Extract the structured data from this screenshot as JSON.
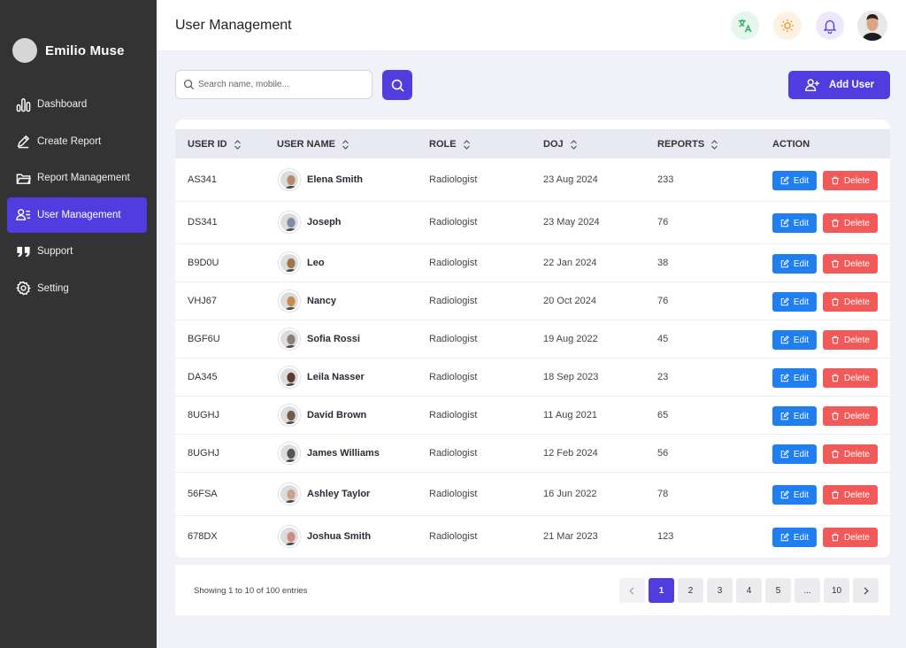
{
  "sidebar": {
    "user_name": "Emilio Muse",
    "items": [
      {
        "label": "Dashboard",
        "icon": "bar-chart-icon",
        "active": false
      },
      {
        "label": "Create Report",
        "icon": "pen-icon",
        "active": false
      },
      {
        "label": "Report Management",
        "icon": "folder-icon",
        "active": false
      },
      {
        "label": "User Management",
        "icon": "user-list-icon",
        "active": true
      },
      {
        "label": "Support",
        "icon": "quote-icon",
        "active": false
      },
      {
        "label": "Setting",
        "icon": "gear-icon",
        "active": false
      }
    ]
  },
  "header": {
    "title": "User Management",
    "icons": [
      "translate-icon",
      "sun-icon",
      "bell-icon"
    ]
  },
  "toolbar": {
    "search_placeholder": "Search name, mobile...",
    "add_user_label": "Add User"
  },
  "table": {
    "columns": [
      "USER ID",
      "USER NAME",
      "ROLE",
      "DOJ",
      "REPORTS",
      "ACTION"
    ],
    "edit_label": "Edit",
    "delete_label": "Delete",
    "rows": [
      {
        "id": "AS341",
        "name": "Elena Smith",
        "role": "Radiologist",
        "doj": "23 Aug 2024",
        "reports": "233"
      },
      {
        "id": "DS341",
        "name": "Joseph",
        "role": "Radiologist",
        "doj": "23 May 2024",
        "reports": "76"
      },
      {
        "id": "B9D0U",
        "name": "Leo",
        "role": "Radiologist",
        "doj": "22 Jan 2024",
        "reports": "38"
      },
      {
        "id": "VHJ67",
        "name": "Nancy",
        "role": "Radiologist",
        "doj": "20 Oct 2024",
        "reports": "76"
      },
      {
        "id": "BGF6U",
        "name": "Sofia Rossi",
        "role": "Radiologist",
        "doj": "19 Aug 2022",
        "reports": "45"
      },
      {
        "id": "DA345",
        "name": "Leila Nasser",
        "role": "Radiologist",
        "doj": "18 Sep 2023",
        "reports": "23"
      },
      {
        "id": "8UGHJ",
        "name": "David Brown",
        "role": "Radiologist",
        "doj": "11 Aug 2021",
        "reports": "65"
      },
      {
        "id": "8UGHJ",
        "name": "James Williams",
        "role": "Radiologist",
        "doj": "12 Feb 2024",
        "reports": "56"
      },
      {
        "id": "56FSA",
        "name": "Ashley Taylor",
        "role": "Radiologist",
        "doj": "16 Jun 2022",
        "reports": "78"
      },
      {
        "id": "678DX",
        "name": "Joshua Smith",
        "role": "Radiologist",
        "doj": "21 Mar 2023",
        "reports": "123"
      }
    ]
  },
  "pagination": {
    "showing_text": "Showing 1 to 10 of 100 entries",
    "pages": [
      "1",
      "2",
      "3",
      "4",
      "5",
      "...",
      "10"
    ],
    "current": "1"
  },
  "colors": {
    "accent": "#4f3de0",
    "sidebar_bg": "#333333",
    "edit": "#1f7ef0",
    "delete": "#f25a5a"
  }
}
